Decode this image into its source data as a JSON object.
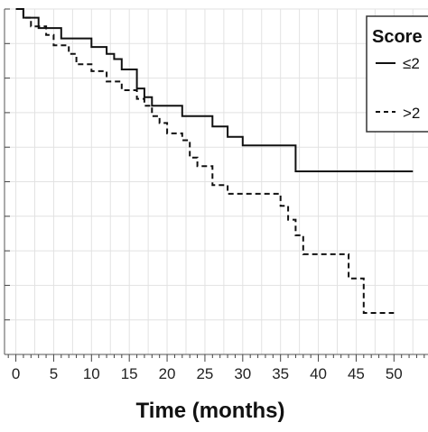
{
  "chart_data": {
    "type": "line",
    "title": "",
    "xlabel": "Time (months)",
    "ylabel": "",
    "xlim": [
      -1.5,
      54.5
    ],
    "ylim": [
      0,
      1
    ],
    "x_ticks": [
      0,
      5,
      10,
      15,
      20,
      25,
      30,
      35,
      40,
      45,
      50
    ],
    "x_tick_labels": [
      "0",
      "5",
      "10",
      "15",
      "20",
      "25",
      "30",
      "35",
      "40",
      "45",
      "50"
    ],
    "grid": true,
    "legend": {
      "title": "Score",
      "placement": "top-right"
    },
    "series": [
      {
        "name": "≤2",
        "style": "solid",
        "color": "#111111",
        "x": [
          0,
          1,
          1,
          3,
          3,
          6,
          6,
          10,
          10,
          12,
          12,
          13,
          13,
          14,
          14,
          16,
          16,
          17,
          17,
          18,
          18,
          22,
          22,
          26,
          26,
          28,
          28,
          30,
          30,
          37,
          37,
          52.5
        ],
        "y": [
          1.0,
          1.0,
          0.975,
          0.975,
          0.945,
          0.945,
          0.915,
          0.915,
          0.89,
          0.89,
          0.87,
          0.87,
          0.855,
          0.855,
          0.825,
          0.825,
          0.77,
          0.77,
          0.745,
          0.745,
          0.72,
          0.72,
          0.69,
          0.69,
          0.66,
          0.66,
          0.63,
          0.63,
          0.605,
          0.605,
          0.53,
          0.53
        ]
      },
      {
        "name": ">2",
        "style": "dashed",
        "color": "#111111",
        "x": [
          0,
          1,
          1,
          2,
          2,
          4,
          4,
          5,
          5,
          7,
          7,
          8,
          8,
          10,
          10,
          12,
          12,
          14,
          14,
          16,
          16,
          17,
          17,
          18,
          18,
          19,
          19,
          20,
          20,
          22,
          22,
          23,
          23,
          24,
          24,
          26,
          26,
          28,
          28,
          35,
          35,
          36,
          36,
          37,
          37,
          38,
          38,
          44,
          44,
          46,
          46,
          50
        ],
        "y": [
          1.0,
          1.0,
          0.975,
          0.975,
          0.95,
          0.95,
          0.925,
          0.925,
          0.895,
          0.895,
          0.87,
          0.87,
          0.84,
          0.84,
          0.82,
          0.82,
          0.79,
          0.79,
          0.765,
          0.765,
          0.74,
          0.74,
          0.72,
          0.72,
          0.69,
          0.69,
          0.67,
          0.67,
          0.64,
          0.64,
          0.62,
          0.62,
          0.57,
          0.57,
          0.545,
          0.545,
          0.49,
          0.49,
          0.465,
          0.465,
          0.43,
          0.43,
          0.39,
          0.39,
          0.345,
          0.345,
          0.29,
          0.29,
          0.22,
          0.22,
          0.12,
          0.12
        ]
      }
    ]
  }
}
